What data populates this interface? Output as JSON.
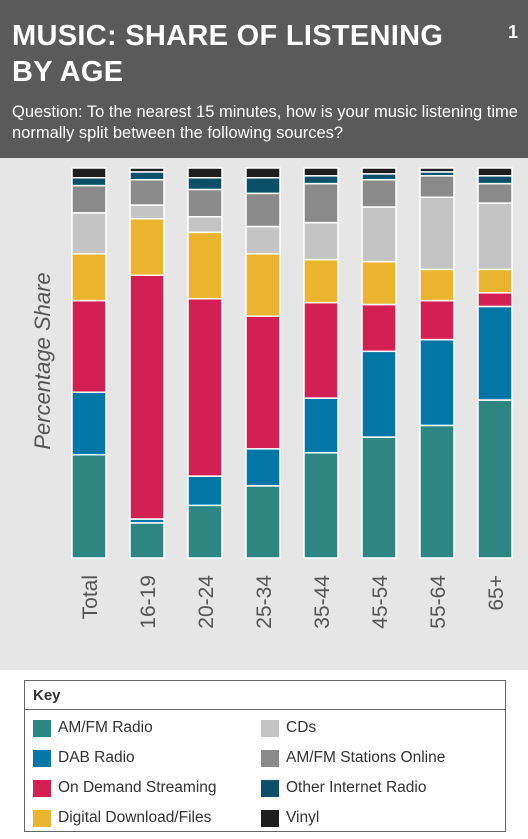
{
  "header": {
    "title": "MUSIC: SHARE OF LISTENING BY AGE",
    "page_number": "1",
    "question": "Question: To the nearest 15 minutes, how is your music listening time normally split between the following sources?"
  },
  "legend": {
    "title": "Key",
    "items": [
      {
        "label": "AM/FM Radio",
        "color": "#2e8683"
      },
      {
        "label": "DAB Radio",
        "color": "#0277a6"
      },
      {
        "label": "On Demand Streaming",
        "color": "#d41f55"
      },
      {
        "label": "Digital Download/Files",
        "color": "#eab42e"
      },
      {
        "label": "CDs",
        "color": "#c4c4c4"
      },
      {
        "label": "AM/FM Stations Online",
        "color": "#8a8a8a"
      },
      {
        "label": "Other Internet Radio",
        "color": "#0b5068"
      },
      {
        "label": "Vinyl",
        "color": "#1e1e1e"
      }
    ]
  },
  "chart_data": {
    "type": "bar",
    "stacked": true,
    "ylabel": "Percentage Share",
    "ylim": [
      0,
      100
    ],
    "categories": [
      "Total",
      "16-19",
      "20-24",
      "25-34",
      "35-44",
      "45-54",
      "55-64",
      "65+"
    ],
    "series": [
      {
        "name": "AM/FM Radio",
        "color": "#2e8683",
        "values": [
          26.5,
          9,
          13.5,
          18.5,
          27,
          31,
          34,
          40.5
        ]
      },
      {
        "name": "DAB Radio",
        "color": "#0277a6",
        "values": [
          16,
          1,
          7.5,
          9.5,
          14,
          22,
          22,
          24
        ]
      },
      {
        "name": "On Demand Streaming",
        "color": "#d41f55",
        "values": [
          23.5,
          62.5,
          45.5,
          34,
          24.5,
          12,
          10,
          3.5
        ]
      },
      {
        "name": "Digital Download/Files",
        "color": "#eab42e",
        "values": [
          12,
          14.5,
          17,
          16,
          11,
          11,
          8,
          6
        ]
      },
      {
        "name": "CDs",
        "color": "#c4c4c4",
        "values": [
          10.5,
          3.5,
          4,
          7,
          9.5,
          14,
          18.5,
          17
        ]
      },
      {
        "name": "AM/FM Stations Online",
        "color": "#8a8a8a",
        "values": [
          7,
          6.5,
          7,
          8.5,
          10,
          7,
          5.5,
          5
        ]
      },
      {
        "name": "Other Internet Radio",
        "color": "#0b5068",
        "values": [
          2,
          2,
          3,
          4,
          2,
          1.5,
          1,
          2
        ]
      },
      {
        "name": "Vinyl",
        "color": "#1e1e1e",
        "values": [
          2.5,
          1,
          2.5,
          2.5,
          2,
          1.5,
          1,
          2
        ]
      }
    ]
  }
}
